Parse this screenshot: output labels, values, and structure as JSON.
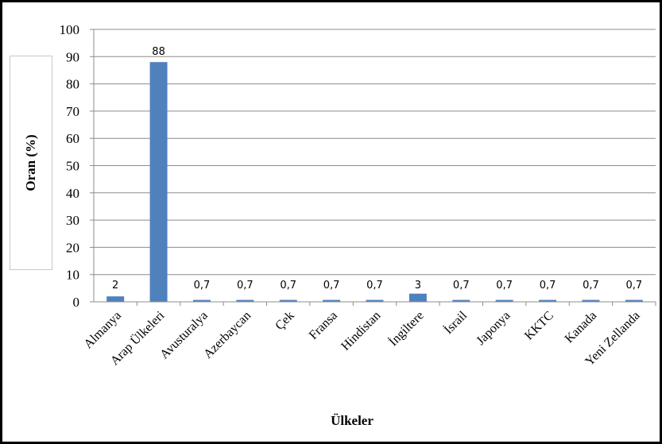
{
  "chart_data": {
    "type": "bar",
    "xlabel": "Ülkeler",
    "ylabel": "Oran (%)",
    "ylim": [
      0,
      100
    ],
    "yticks": [
      "0",
      "10",
      "20",
      "30",
      "40",
      "50",
      "60",
      "70",
      "80",
      "90",
      "100"
    ],
    "categories": [
      "Almanya",
      "Arap Ülkeleri",
      "Avusturalya",
      "Azerbaycan",
      "Çek",
      "Fransa",
      "Hindistan",
      "İngiltere",
      "İsrail",
      "Japonya",
      "KKTC",
      "Kanada",
      "Yeni Zellanda"
    ],
    "values": [
      2,
      88,
      0.7,
      0.7,
      0.7,
      0.7,
      0.7,
      3,
      0.7,
      0.7,
      0.7,
      0.7,
      0.7
    ],
    "data_labels": [
      "2",
      "88",
      "0,7",
      "0,7",
      "0,7",
      "0,7",
      "0,7",
      "3",
      "0,7",
      "0,7",
      "0,7",
      "0,7",
      "0,7"
    ],
    "bar_color": "#4f81bd",
    "grid": true,
    "legend": "none"
  }
}
